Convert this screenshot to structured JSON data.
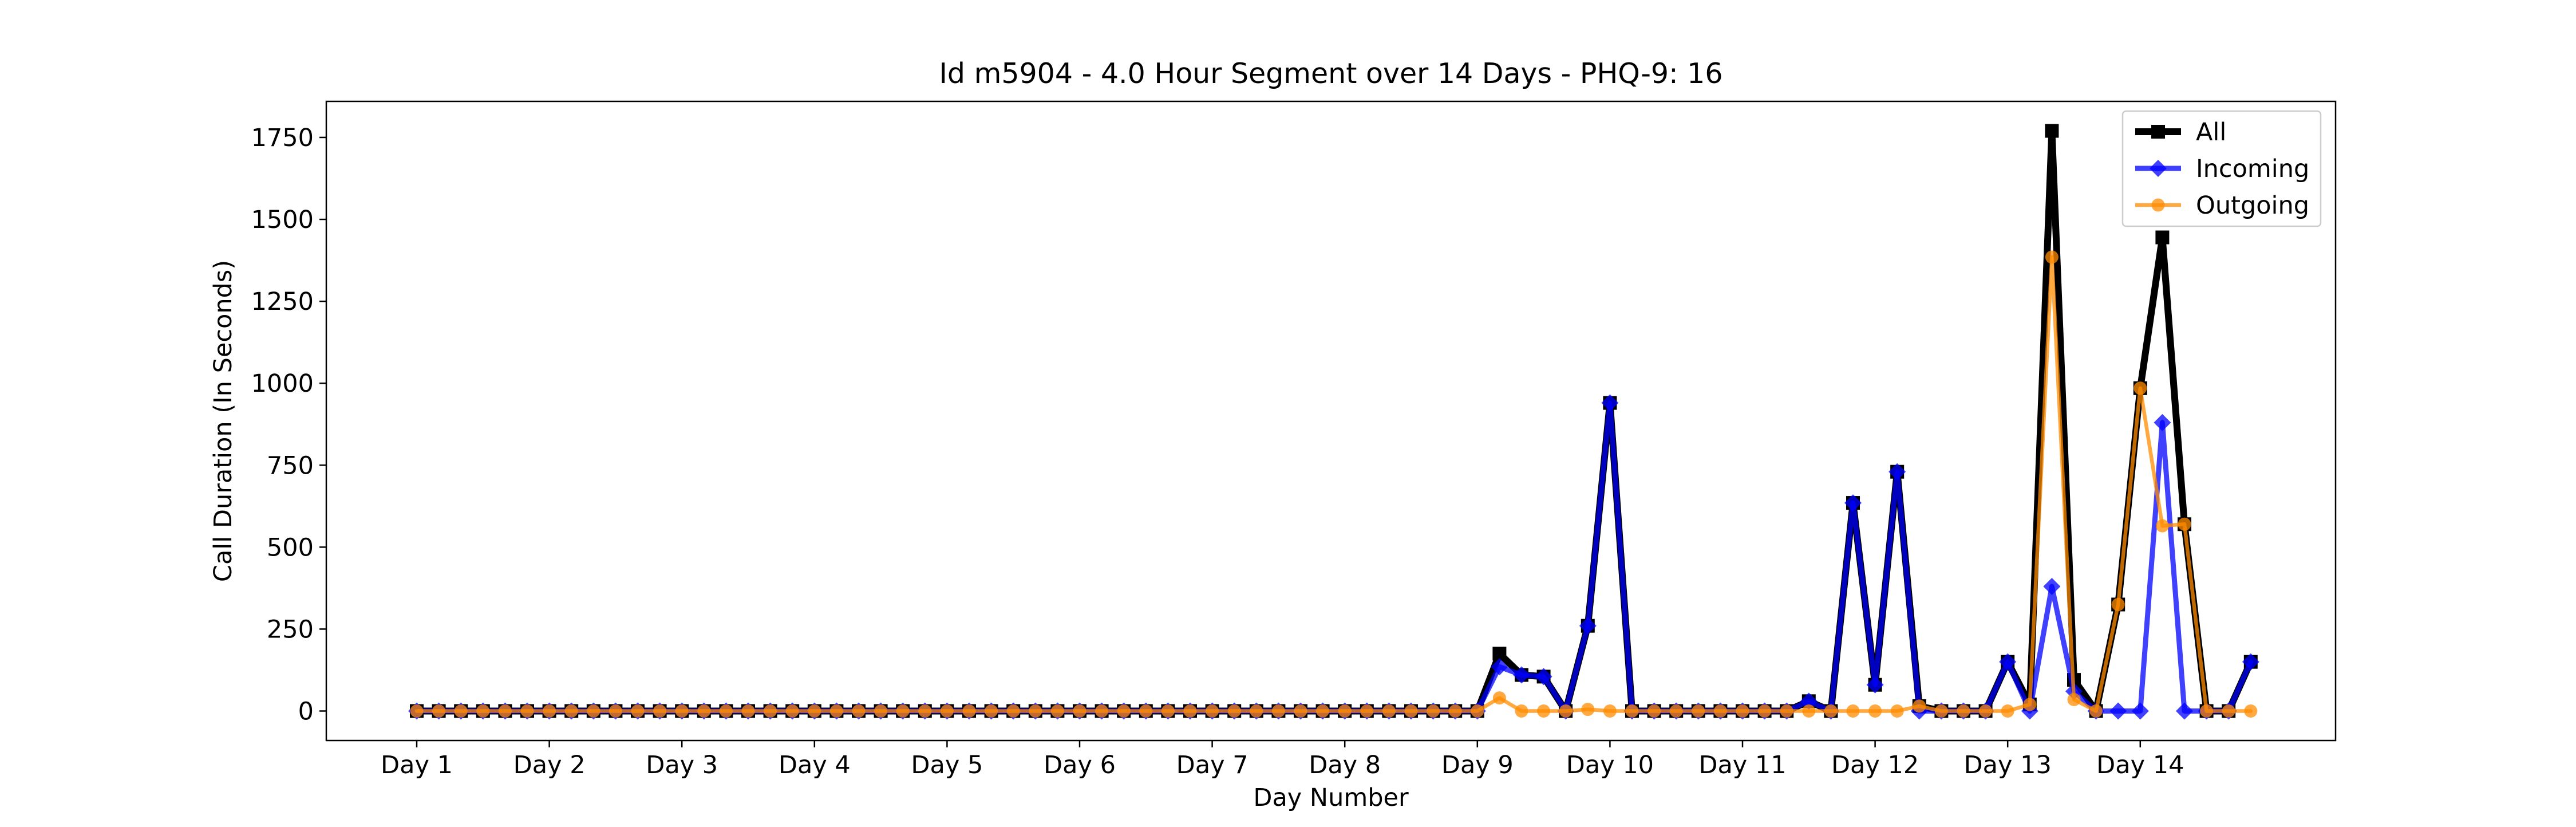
{
  "chart_data": {
    "type": "line",
    "title": "Id m5904 - 4.0 Hour Segment over 14 Days - PHQ-9: 16",
    "xlabel": "Day Number",
    "ylabel": "Call Duration (In Seconds)",
    "x_tick_labels": [
      "Day 1",
      "Day 2",
      "Day 3",
      "Day 4",
      "Day 5",
      "Day 6",
      "Day 7",
      "Day 8",
      "Day 9",
      "Day 10",
      "Day 11",
      "Day 12",
      "Day 13",
      "Day 14"
    ],
    "y_ticks": [
      0,
      250,
      500,
      750,
      1000,
      1250,
      1500,
      1750
    ],
    "ylim": [
      -90,
      1860
    ],
    "segments_per_day": 6,
    "grid": false,
    "legend_position": "top-right",
    "series": [
      {
        "name": "All",
        "color": "#000000",
        "marker": "square",
        "values": [
          0,
          0,
          0,
          0,
          0,
          0,
          0,
          0,
          0,
          0,
          0,
          0,
          0,
          0,
          0,
          0,
          0,
          0,
          0,
          0,
          0,
          0,
          0,
          0,
          0,
          0,
          0,
          0,
          0,
          0,
          0,
          0,
          0,
          0,
          0,
          0,
          0,
          0,
          0,
          0,
          0,
          0,
          0,
          0,
          0,
          0,
          0,
          0,
          0,
          175,
          110,
          105,
          0,
          260,
          940,
          0,
          0,
          0,
          0,
          0,
          0,
          0,
          0,
          30,
          0,
          635,
          80,
          730,
          15,
          0,
          0,
          0,
          150,
          20,
          1770,
          95,
          0,
          325,
          985,
          1445,
          570,
          0,
          0,
          150
        ]
      },
      {
        "name": "Incoming",
        "color": "#0000ff",
        "marker": "diamond",
        "values": [
          0,
          0,
          0,
          0,
          0,
          0,
          0,
          0,
          0,
          0,
          0,
          0,
          0,
          0,
          0,
          0,
          0,
          0,
          0,
          0,
          0,
          0,
          0,
          0,
          0,
          0,
          0,
          0,
          0,
          0,
          0,
          0,
          0,
          0,
          0,
          0,
          0,
          0,
          0,
          0,
          0,
          0,
          0,
          0,
          0,
          0,
          0,
          0,
          0,
          135,
          110,
          105,
          0,
          260,
          940,
          0,
          0,
          0,
          0,
          0,
          0,
          0,
          0,
          30,
          0,
          635,
          80,
          730,
          0,
          0,
          0,
          0,
          150,
          0,
          380,
          60,
          0,
          0,
          0,
          880,
          0,
          0,
          0,
          150
        ]
      },
      {
        "name": "Outgoing",
        "color": "#ff8c00",
        "marker": "circle",
        "values": [
          0,
          0,
          0,
          0,
          0,
          0,
          0,
          0,
          0,
          0,
          0,
          0,
          0,
          0,
          0,
          0,
          0,
          0,
          0,
          0,
          0,
          0,
          0,
          0,
          0,
          0,
          0,
          0,
          0,
          0,
          0,
          0,
          0,
          0,
          0,
          0,
          0,
          0,
          0,
          0,
          0,
          0,
          0,
          0,
          0,
          0,
          0,
          0,
          0,
          40,
          0,
          0,
          0,
          5,
          0,
          0,
          0,
          0,
          0,
          0,
          0,
          0,
          0,
          0,
          0,
          0,
          0,
          0,
          15,
          0,
          0,
          0,
          0,
          20,
          1385,
          35,
          0,
          325,
          985,
          565,
          570,
          0,
          0,
          0
        ]
      }
    ]
  }
}
